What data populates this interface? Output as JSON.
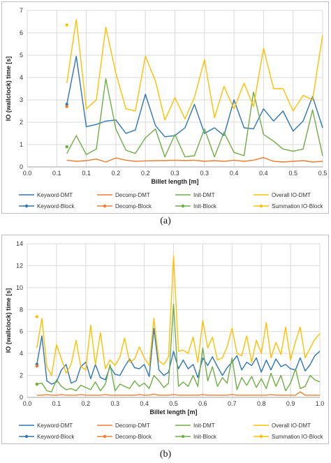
{
  "chart_data": [
    {
      "type": "line",
      "panel_label": "(a)",
      "xlabel": "Billet length [m]",
      "ylabel": "IO (wallclock) time [s]",
      "xlim": [
        0,
        0.5
      ],
      "ylim": [
        0,
        7
      ],
      "xticks": [
        "0.0",
        "0.1",
        "0.1",
        "0.2",
        "0.2",
        "0.3",
        "0.3",
        "0.4",
        "0.4",
        "0.5",
        "0.5"
      ],
      "yticks": [
        "0",
        "1",
        "2",
        "3",
        "4",
        "5",
        "6",
        "7"
      ],
      "grid": true,
      "legend_position": "bottom",
      "legend": [
        "Keyword-DMT",
        "Decomp-DMT",
        "Init-DMT",
        "Overall IO-DMT",
        "Keyword-Block",
        "Decomp-Block",
        "Init-Block",
        "Summation IO-Block"
      ],
      "x": [
        0.067,
        0.083,
        0.1,
        0.117,
        0.133,
        0.15,
        0.167,
        0.183,
        0.2,
        0.217,
        0.233,
        0.25,
        0.267,
        0.283,
        0.3,
        0.317,
        0.333,
        0.35,
        0.367,
        0.383,
        0.4,
        0.417,
        0.433,
        0.45,
        0.467,
        0.483,
        0.5
      ],
      "series": [
        {
          "name": "Keyword-DMT",
          "color": "#2e75b6",
          "values": [
            2.8,
            4.95,
            1.8,
            1.9,
            2.05,
            2.1,
            1.5,
            1.65,
            3.25,
            1.85,
            1.35,
            1.4,
            1.75,
            2.8,
            1.5,
            1.75,
            1.4,
            3.0,
            1.75,
            1.7,
            2.6,
            2.05,
            2.5,
            1.6,
            2.05,
            3.15,
            1.75
          ]
        },
        {
          "name": "Decomp-DMT",
          "color": "#ed7d31",
          "values": [
            0.3,
            0.25,
            0.28,
            0.35,
            0.22,
            0.4,
            0.3,
            0.25,
            0.27,
            0.28,
            0.28,
            0.3,
            0.28,
            0.3,
            0.25,
            0.28,
            0.25,
            0.3,
            0.25,
            0.3,
            0.42,
            0.25,
            0.22,
            0.25,
            0.28,
            0.22,
            0.25
          ]
        },
        {
          "name": "Init-DMT",
          "color": "#70ad47",
          "values": [
            0.6,
            1.4,
            0.55,
            0.8,
            3.95,
            1.7,
            0.75,
            0.6,
            1.3,
            1.7,
            0.45,
            1.45,
            0.45,
            0.5,
            1.7,
            0.45,
            1.55,
            0.65,
            0.5,
            3.35,
            1.45,
            1.15,
            0.8,
            0.7,
            0.8,
            2.55,
            0.5
          ]
        },
        {
          "name": "Overall IO-DMT",
          "color": "#ffc000",
          "values": [
            3.75,
            6.6,
            2.6,
            3.0,
            6.25,
            4.2,
            2.6,
            2.5,
            4.95,
            3.85,
            2.1,
            3.1,
            2.15,
            3.1,
            4.8,
            2.2,
            3.6,
            2.6,
            3.75,
            2.7,
            5.3,
            3.5,
            3.5,
            2.5,
            3.2,
            3.0,
            5.9
          ]
        }
      ],
      "block_points": [
        {
          "name": "Keyword-Block",
          "color": "#2e75b6",
          "x": 0.067,
          "value": 2.8
        },
        {
          "name": "Decomp-Block",
          "color": "#ed7d31",
          "x": 0.067,
          "value": 2.7
        },
        {
          "name": "Init-Block",
          "color": "#70ad47",
          "x": 0.067,
          "value": 0.9
        },
        {
          "name": "Summation IO-Block",
          "color": "#ffc000",
          "x": 0.067,
          "value": 6.35
        }
      ]
    },
    {
      "type": "line",
      "panel_label": "(b)",
      "xlabel": "Billet length [m]",
      "ylabel": "IO (wallclock) time [s]",
      "xlim": [
        0,
        1.0
      ],
      "ylim": [
        0,
        14
      ],
      "xticks": [
        "0.0",
        "0.1",
        "0.2",
        "0.3",
        "0.4",
        "0.5",
        "0.6",
        "0.7",
        "0.8",
        "0.9",
        "1.0"
      ],
      "yticks": [
        "0",
        "2",
        "4",
        "6",
        "8",
        "10",
        "12",
        "14"
      ],
      "grid": true,
      "legend_position": "bottom",
      "legend": [
        "Keyword-DMT",
        "Decomp-DMT",
        "Init-DMT",
        "Overall IO-DMT",
        "Keyword-Block",
        "Decomp-Block",
        "Init-Block",
        "Summation IO-Block"
      ],
      "x": [
        0.033,
        0.05,
        0.067,
        0.083,
        0.1,
        0.117,
        0.133,
        0.15,
        0.167,
        0.183,
        0.2,
        0.217,
        0.233,
        0.25,
        0.267,
        0.283,
        0.3,
        0.317,
        0.333,
        0.35,
        0.367,
        0.383,
        0.4,
        0.417,
        0.433,
        0.45,
        0.467,
        0.483,
        0.5,
        0.517,
        0.533,
        0.55,
        0.567,
        0.583,
        0.6,
        0.617,
        0.633,
        0.65,
        0.667,
        0.683,
        0.7,
        0.717,
        0.733,
        0.75,
        0.767,
        0.783,
        0.8,
        0.817,
        0.833,
        0.85,
        0.867,
        0.883,
        0.9,
        0.917,
        0.933,
        0.95,
        0.967,
        0.983,
        1.0
      ],
      "series": [
        {
          "name": "Keyword-DMT",
          "color": "#2e75b6",
          "values": [
            3.0,
            5.6,
            1.5,
            1.2,
            1.4,
            2.5,
            3.0,
            1.3,
            1.5,
            2.8,
            3.2,
            1.7,
            3.0,
            1.8,
            1.6,
            2.8,
            2.1,
            2.0,
            2.8,
            3.5,
            2.7,
            2.6,
            3.0,
            1.9,
            6.3,
            2.5,
            2.0,
            2.3,
            4.2,
            2.6,
            3.4,
            2.6,
            3.0,
            1.8,
            3.6,
            2.9,
            3.7,
            2.8,
            2.0,
            2.7,
            3.2,
            3.8,
            2.5,
            3.2,
            2.9,
            3.6,
            2.3,
            3.4,
            2.5,
            3.5,
            2.8,
            3.0,
            2.6,
            2.5,
            3.6,
            2.4,
            3.0,
            3.8,
            4.2
          ]
        },
        {
          "name": "Decomp-DMT",
          "color": "#ed7d31",
          "values": [
            0.2,
            0.2,
            0.25,
            0.2,
            0.2,
            0.25,
            0.2,
            0.2,
            0.2,
            0.25,
            0.2,
            0.2,
            0.2,
            0.2,
            0.25,
            0.2,
            0.2,
            0.2,
            0.2,
            0.2,
            0.2,
            0.25,
            0.2,
            0.2,
            0.3,
            0.2,
            0.2,
            0.2,
            0.25,
            0.2,
            0.2,
            0.2,
            0.2,
            0.2,
            0.25,
            0.2,
            0.2,
            0.2,
            0.2,
            0.2,
            0.25,
            0.2,
            0.2,
            0.2,
            0.2,
            0.2,
            0.2,
            0.2,
            0.25,
            0.2,
            0.2,
            0.2,
            0.2,
            0.2,
            0.5,
            0.2,
            0.2,
            0.2,
            0.2
          ]
        },
        {
          "name": "Init-DMT",
          "color": "#70ad47",
          "values": [
            1.2,
            1.3,
            0.6,
            0.5,
            1.6,
            1.0,
            0.7,
            0.8,
            0.6,
            1.1,
            0.9,
            0.7,
            1.4,
            0.6,
            1.2,
            3.0,
            0.6,
            1.2,
            1.0,
            0.8,
            1.5,
            1.0,
            1.3,
            0.8,
            2.0,
            1.5,
            0.9,
            1.3,
            8.5,
            1.0,
            1.4,
            1.0,
            2.0,
            1.0,
            4.5,
            1.5,
            2.8,
            1.0,
            1.8,
            1.3,
            3.6,
            0.7,
            1.8,
            1.1,
            1.9,
            0.9,
            1.7,
            0.8,
            2.2,
            1.0,
            2.0,
            0.6,
            1.3,
            2.6,
            0.8,
            1.0,
            2.0,
            1.6,
            1.4
          ]
        },
        {
          "name": "Overall IO-DMT",
          "color": "#ffc000",
          "values": [
            4.5,
            7.2,
            2.8,
            2.0,
            4.8,
            3.5,
            2.2,
            3.0,
            5.2,
            2.8,
            2.5,
            6.6,
            3.0,
            5.9,
            2.6,
            3.4,
            2.9,
            3.7,
            5.4,
            3.2,
            3.5,
            4.6,
            3.6,
            2.9,
            7.2,
            3.3,
            3.0,
            3.7,
            12.9,
            4.2,
            4.3,
            4.0,
            5.5,
            3.2,
            7.0,
            4.5,
            5.5,
            3.4,
            3.6,
            4.6,
            6.3,
            4.0,
            3.8,
            5.6,
            3.2,
            5.2,
            4.0,
            6.8,
            3.6,
            5.0,
            3.9,
            6.4,
            3.4,
            5.1,
            6.4,
            3.6,
            4.5,
            5.3,
            5.8
          ]
        }
      ],
      "block_points": [
        {
          "name": "Keyword-Block",
          "color": "#2e75b6",
          "x": 0.033,
          "value": 3.0
        },
        {
          "name": "Decomp-Block",
          "color": "#ed7d31",
          "x": 0.033,
          "value": 2.85
        },
        {
          "name": "Init-Block",
          "color": "#70ad47",
          "x": 0.033,
          "value": 1.2
        },
        {
          "name": "Summation IO-Block",
          "color": "#ffc000",
          "x": 0.033,
          "value": 7.35
        }
      ]
    }
  ]
}
